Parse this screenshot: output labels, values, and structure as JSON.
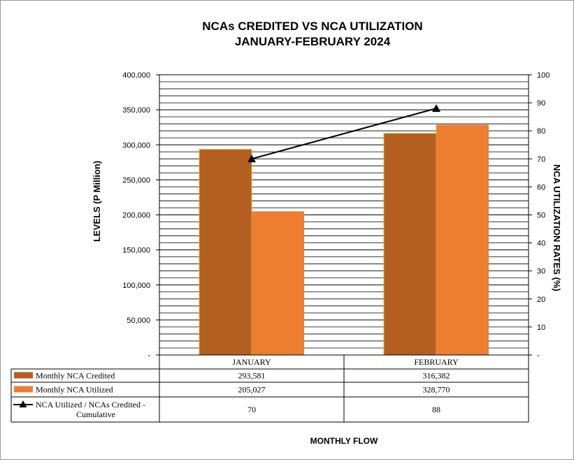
{
  "chart_data": {
    "type": "bar",
    "title": [
      "NCAs CREDITED VS NCA UTILIZATION",
      "JANUARY-FEBRUARY  2024"
    ],
    "categories": [
      "JANUARY",
      "FEBRUARY"
    ],
    "series": [
      {
        "name": "Monthly NCA Credited",
        "kind": "bar",
        "axis": "left",
        "color": "#B45E20",
        "values": [
          293581,
          316382
        ],
        "labels": [
          "293,581",
          "316,382"
        ]
      },
      {
        "name": "Monthly NCA Utilized",
        "kind": "bar",
        "axis": "left",
        "color": "#ED7D31",
        "values": [
          205027,
          328770
        ],
        "labels": [
          "205,027",
          "328,770"
        ]
      },
      {
        "name": [
          "NCA Utilized / NCAs Credited -",
          "Cumulative"
        ],
        "kind": "line",
        "marker": "triangle",
        "axis": "right",
        "color": "#000000",
        "values": [
          70,
          88
        ],
        "labels": [
          "70",
          "88"
        ]
      }
    ],
    "ylabel": "LEVELS (P Million)",
    "y2label": "NCA  UTILIZATION  RATES  (%)",
    "xlabel": "MONTHLY  FLOW",
    "ylim": [
      0,
      400000
    ],
    "y2lim": [
      0,
      100
    ],
    "yticks": [
      "-",
      "50,000",
      "100,000",
      "150,000",
      "200,000",
      "250,000",
      "300,000",
      "350,000",
      "400,000"
    ],
    "y2ticks": [
      "-",
      "10",
      "20",
      "30",
      "40",
      "50",
      "60",
      "70",
      "80",
      "90",
      "100"
    ],
    "grid": true,
    "legend": "data table"
  }
}
